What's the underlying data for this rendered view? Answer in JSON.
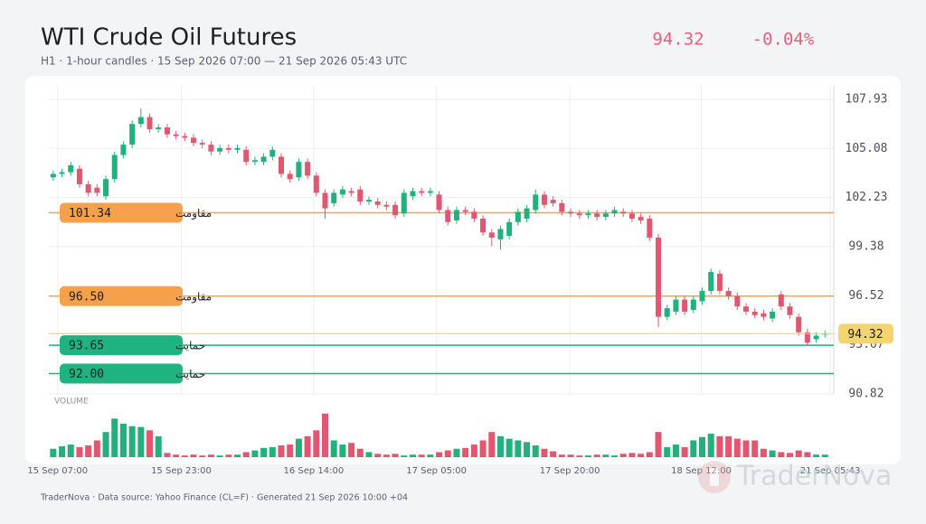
{
  "chart_data": {
    "type": "candlestick",
    "title": "WTI Crude Oil Futures",
    "subtitle": "H1 · 1-hour candles · 15 Sep 2026 07:00 — 21 Sep 2026 05:43 UTC",
    "last_price": 94.32,
    "change": "-0.04%",
    "volume_label": "VOLUME",
    "footer": "TraderNova · Data source: Yahoo Finance (CL=F) · Generated 21 Sep 2026 10:00 +04",
    "watermark": "TraderNova",
    "up_color": "#22b07d",
    "down_color": "#e3566f",
    "ylim": [
      90.82,
      107.93
    ],
    "yticks": [
      {
        "value": 90.82,
        "label": "90.82"
      },
      {
        "value": 93.67,
        "label": "93.67"
      },
      {
        "value": 96.52,
        "label": "96.52"
      },
      {
        "value": 99.38,
        "label": "99.38"
      },
      {
        "value": 102.23,
        "label": "102.23"
      },
      {
        "value": 105.08,
        "label": "105.08"
      },
      {
        "value": 107.93,
        "label": "107.93"
      }
    ],
    "xlim": [
      -0.5,
      89
    ],
    "xticks": [
      {
        "value": 0.5,
        "label": "15 Sep 07:00"
      },
      {
        "value": 14.6,
        "label": "15 Sep 23:00"
      },
      {
        "value": 29.7,
        "label": "16 Sep 14:00"
      },
      {
        "value": 43.7,
        "label": "17 Sep 05:00"
      },
      {
        "value": 58.9,
        "label": "17 Sep 20:00"
      },
      {
        "value": 73.9,
        "label": "18 Sep 12:00"
      },
      {
        "value": 88.6,
        "label": "21 Sep 05:43"
      }
    ],
    "vlim": [
      0,
      55
    ],
    "levels": [
      {
        "kind": "مقاومت",
        "value": 101.34,
        "value_label": "101.34",
        "color": "#f5a04a"
      },
      {
        "kind": "مقاومت",
        "value": 96.5,
        "value_label": "96.50",
        "color": "#f5a04a"
      },
      {
        "kind": "حمایت",
        "value": 93.65,
        "value_label": "93.65",
        "color": "#1fb37f"
      },
      {
        "kind": "حمایت",
        "value": 92.0,
        "value_label": "92.00",
        "color": "#1fb37f"
      }
    ],
    "open": [
      103.4,
      103.6,
      103.7,
      103.9,
      103.0,
      102.8,
      102.3,
      103.3,
      104.7,
      105.3,
      106.5,
      106.9,
      106.2,
      106.3,
      105.9,
      105.8,
      105.7,
      105.4,
      105.3,
      104.9,
      105.1,
      105.0,
      105.0,
      104.3,
      104.3,
      104.6,
      104.6,
      103.6,
      103.4,
      104.3,
      103.5,
      102.5,
      101.9,
      102.4,
      102.6,
      102.7,
      102.0,
      102.0,
      101.8,
      101.8,
      101.3,
      102.3,
      102.6,
      102.5,
      102.4,
      101.5,
      100.9,
      101.5,
      101.4,
      101.0,
      100.2,
      99.8,
      100.0,
      100.8,
      101.0,
      101.5,
      102.4,
      102.1,
      101.9,
      101.4,
      101.3,
      101.2,
      101.3,
      101.1,
      101.3,
      101.4,
      101.3,
      101.1,
      101.0,
      99.9,
      95.3,
      95.6,
      96.3,
      95.7,
      96.2,
      96.8,
      97.8,
      96.8,
      96.5,
      95.9,
      95.6,
      95.5,
      95.2,
      96.6,
      95.9,
      95.3,
      94.4,
      94.0,
      94.3
    ],
    "high": [
      103.8,
      103.9,
      104.3,
      104.1,
      103.2,
      103.0,
      103.5,
      104.9,
      105.5,
      106.7,
      107.4,
      107.1,
      106.5,
      106.5,
      106.1,
      106.0,
      105.9,
      105.6,
      105.5,
      105.3,
      105.3,
      105.3,
      105.2,
      104.6,
      104.8,
      105.2,
      104.8,
      103.8,
      104.5,
      104.5,
      103.7,
      102.7,
      102.7,
      102.9,
      102.8,
      102.9,
      102.3,
      102.2,
      102.0,
      102.0,
      102.7,
      102.8,
      102.8,
      102.8,
      102.6,
      101.7,
      101.7,
      101.7,
      101.6,
      101.2,
      100.4,
      100.6,
      101.0,
      101.6,
      101.8,
      102.7,
      102.6,
      102.3,
      102.1,
      101.6,
      101.5,
      101.5,
      101.5,
      101.5,
      101.7,
      101.6,
      101.5,
      101.3,
      101.2,
      100.1,
      96.0,
      96.5,
      96.5,
      96.5,
      97.0,
      98.1,
      98.0,
      97.0,
      96.7,
      96.1,
      95.8,
      95.7,
      95.8,
      96.8,
      96.1,
      95.5,
      94.6,
      94.4,
      94.5
    ],
    "low": [
      103.2,
      103.4,
      103.5,
      102.8,
      102.3,
      102.3,
      102.1,
      103.1,
      104.5,
      105.1,
      106.3,
      106.0,
      106.0,
      105.7,
      105.6,
      105.5,
      105.2,
      105.1,
      104.7,
      104.7,
      104.8,
      104.8,
      104.1,
      104.1,
      104.1,
      104.4,
      103.4,
      103.1,
      103.2,
      103.3,
      102.3,
      101.0,
      101.7,
      102.2,
      102.3,
      101.8,
      101.8,
      101.6,
      101.5,
      101.0,
      101.1,
      102.1,
      102.3,
      102.3,
      101.3,
      100.6,
      100.7,
      101.2,
      100.8,
      100.0,
      99.4,
      99.2,
      99.8,
      100.6,
      100.8,
      101.3,
      101.6,
      101.7,
      101.2,
      101.1,
      101.0,
      101.0,
      100.9,
      100.9,
      101.1,
      101.1,
      100.8,
      100.7,
      99.7,
      94.7,
      95.1,
      95.4,
      95.4,
      95.5,
      96.0,
      96.6,
      96.6,
      96.3,
      95.7,
      95.4,
      95.2,
      95.1,
      95.0,
      95.7,
      95.2,
      94.2,
      93.6,
      93.8,
      94.1
    ],
    "close": [
      103.6,
      103.7,
      104.1,
      103.0,
      102.5,
      102.5,
      103.3,
      104.7,
      105.3,
      106.5,
      106.9,
      106.2,
      106.3,
      105.9,
      105.8,
      105.7,
      105.4,
      105.3,
      104.9,
      105.1,
      105.0,
      105.1,
      104.3,
      104.4,
      104.6,
      105.0,
      103.6,
      103.3,
      104.3,
      103.5,
      102.5,
      101.6,
      102.5,
      102.7,
      102.5,
      102.0,
      102.1,
      101.8,
      101.7,
      101.2,
      102.5,
      102.6,
      102.5,
      102.6,
      101.5,
      100.8,
      101.5,
      101.4,
      101.0,
      100.2,
      99.9,
      100.4,
      100.8,
      101.4,
      101.6,
      102.4,
      101.8,
      101.9,
      101.4,
      101.3,
      101.2,
      101.3,
      101.1,
      101.3,
      101.5,
      101.3,
      101.0,
      100.9,
      99.9,
      95.3,
      95.8,
      96.3,
      95.6,
      96.3,
      96.8,
      97.9,
      96.8,
      96.5,
      95.9,
      95.6,
      95.4,
      95.3,
      95.6,
      95.9,
      95.4,
      94.4,
      93.8,
      94.2,
      94.32
    ],
    "volume": [
      10,
      13,
      15,
      12,
      14,
      20,
      30,
      46,
      40,
      37,
      36,
      32,
      25,
      5,
      3,
      2,
      3,
      2,
      3,
      2,
      3,
      3,
      6,
      8,
      11,
      12,
      14,
      15,
      22,
      25,
      32,
      52,
      20,
      15,
      17,
      10,
      6,
      4,
      3,
      4,
      2,
      3,
      3,
      3,
      6,
      8,
      10,
      11,
      15,
      20,
      30,
      25,
      22,
      20,
      18,
      14,
      10,
      7,
      3,
      3,
      2,
      2,
      3,
      3,
      2,
      4,
      5,
      4,
      6,
      30,
      12,
      15,
      12,
      20,
      24,
      28,
      25,
      25,
      22,
      20,
      20,
      10,
      8,
      6,
      5,
      8,
      6,
      3,
      3
    ]
  }
}
